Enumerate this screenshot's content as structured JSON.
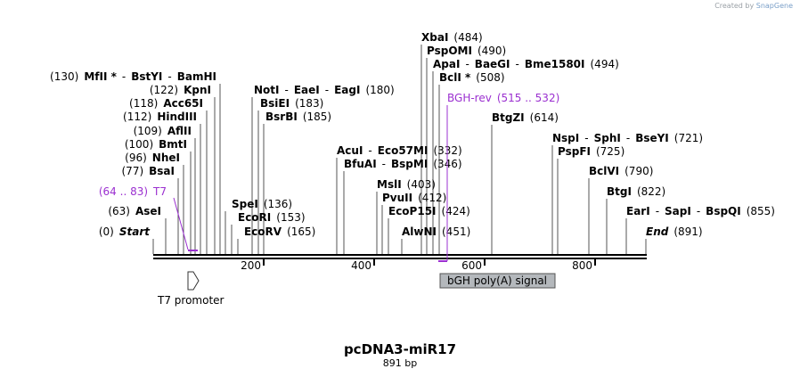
{
  "credit": {
    "prefix": "Created by",
    "brand": "SnapGene"
  },
  "plasmid": {
    "name": "pcDNA3-miR17",
    "length_label": "891 bp"
  },
  "axis": {
    "ticks": [
      "200",
      "400",
      "600",
      "800"
    ]
  },
  "sites": [
    {
      "parts": [
        {
          "t": "(0)"
        },
        {
          "t": "Start",
          "b": true,
          "i": true
        }
      ]
    },
    {
      "parts": [
        {
          "t": "(63)"
        },
        {
          "t": "AseI",
          "b": true
        }
      ]
    },
    {
      "parts": [
        {
          "t": "(77)"
        },
        {
          "t": "BsaI",
          "b": true
        }
      ]
    },
    {
      "parts": [
        {
          "t": "(96)"
        },
        {
          "t": "NheI",
          "b": true
        }
      ]
    },
    {
      "parts": [
        {
          "t": "(100)"
        },
        {
          "t": "BmtI",
          "b": true
        }
      ]
    },
    {
      "parts": [
        {
          "t": "(109)"
        },
        {
          "t": "AflII",
          "b": true
        }
      ]
    },
    {
      "parts": [
        {
          "t": "(112)"
        },
        {
          "t": "HindIII",
          "b": true
        }
      ]
    },
    {
      "parts": [
        {
          "t": "(118)"
        },
        {
          "t": "Acc65I",
          "b": true
        }
      ]
    },
    {
      "parts": [
        {
          "t": "(122)"
        },
        {
          "t": "KpnI",
          "b": true
        }
      ]
    },
    {
      "parts": [
        {
          "t": "(130)"
        },
        {
          "t": "MfII *",
          "b": true
        },
        {
          "t": "-"
        },
        {
          "t": "BstYI",
          "b": true
        },
        {
          "t": "-"
        },
        {
          "t": "BamHI",
          "b": true
        }
      ]
    },
    {
      "parts": [
        {
          "t": "NotI",
          "b": true
        },
        {
          "t": "-"
        },
        {
          "t": "EaeI",
          "b": true
        },
        {
          "t": "-"
        },
        {
          "t": "EagI",
          "b": true
        },
        {
          "t": "(180)"
        }
      ]
    },
    {
      "parts": [
        {
          "t": "BsiEI",
          "b": true
        },
        {
          "t": "(183)"
        }
      ]
    },
    {
      "parts": [
        {
          "t": "BsrBI",
          "b": true
        },
        {
          "t": "(185)"
        }
      ]
    },
    {
      "parts": [
        {
          "t": "SpeI",
          "b": true
        },
        {
          "t": "(136)"
        }
      ]
    },
    {
      "parts": [
        {
          "t": "EcoRI",
          "b": true
        },
        {
          "t": "(153)"
        }
      ]
    },
    {
      "parts": [
        {
          "t": "EcoRV",
          "b": true
        },
        {
          "t": "(165)"
        }
      ]
    },
    {
      "parts": [
        {
          "t": "AcuI",
          "b": true
        },
        {
          "t": "-"
        },
        {
          "t": "Eco57MI",
          "b": true
        },
        {
          "t": "(332)"
        }
      ]
    },
    {
      "parts": [
        {
          "t": "BfuAI",
          "b": true
        },
        {
          "t": "-"
        },
        {
          "t": "BspMI",
          "b": true
        },
        {
          "t": "(346)"
        }
      ]
    },
    {
      "parts": [
        {
          "t": "MslI",
          "b": true
        },
        {
          "t": "(403)"
        }
      ]
    },
    {
      "parts": [
        {
          "t": "PvuII",
          "b": true
        },
        {
          "t": "(412)"
        }
      ]
    },
    {
      "parts": [
        {
          "t": "EcoP15I",
          "b": true
        },
        {
          "t": "(424)"
        }
      ]
    },
    {
      "parts": [
        {
          "t": "AlwNI",
          "b": true
        },
        {
          "t": "(451)"
        }
      ]
    },
    {
      "parts": [
        {
          "t": "XbaI",
          "b": true
        },
        {
          "t": "(484)"
        }
      ]
    },
    {
      "parts": [
        {
          "t": "PspOMI",
          "b": true
        },
        {
          "t": "(490)"
        }
      ]
    },
    {
      "parts": [
        {
          "t": "ApaI",
          "b": true
        },
        {
          "t": "-"
        },
        {
          "t": "BaeGI",
          "b": true
        },
        {
          "t": "-"
        },
        {
          "t": "Bme1580I",
          "b": true
        },
        {
          "t": "(494)"
        }
      ]
    },
    {
      "parts": [
        {
          "t": "BclI *",
          "b": true
        },
        {
          "t": "(508)"
        }
      ]
    },
    {
      "parts": [
        {
          "t": "BtgZI",
          "b": true
        },
        {
          "t": "(614)"
        }
      ]
    },
    {
      "parts": [
        {
          "t": "NspI",
          "b": true
        },
        {
          "t": "-"
        },
        {
          "t": "SphI",
          "b": true
        },
        {
          "t": "-"
        },
        {
          "t": "BseYI",
          "b": true
        },
        {
          "t": "(721)"
        }
      ]
    },
    {
      "parts": [
        {
          "t": "PspFI",
          "b": true
        },
        {
          "t": "(725)"
        }
      ]
    },
    {
      "parts": [
        {
          "t": "BclVI",
          "b": true
        },
        {
          "t": "(790)"
        }
      ]
    },
    {
      "parts": [
        {
          "t": "BtgI",
          "b": true
        },
        {
          "t": "(822)"
        }
      ]
    },
    {
      "parts": [
        {
          "t": "EarI",
          "b": true
        },
        {
          "t": "-"
        },
        {
          "t": "SapI",
          "b": true
        },
        {
          "t": "-"
        },
        {
          "t": "BspQI",
          "b": true
        },
        {
          "t": "(855)"
        }
      ]
    },
    {
      "parts": [
        {
          "t": "End",
          "b": true,
          "i": true
        },
        {
          "t": "(891)"
        }
      ]
    }
  ],
  "primers": [
    {
      "parts": [
        {
          "t": "(64 .. 83)"
        },
        {
          "t": "T7"
        }
      ]
    },
    {
      "parts": [
        {
          "t": "BGH-rev"
        },
        {
          "t": "(515 .. 532)"
        }
      ]
    }
  ],
  "features": {
    "t7_promoter": "T7 promoter",
    "bgh_polya": "bGH poly(A) signal"
  },
  "colors": {
    "primer": "#9b30d0",
    "feature_box": "#b4b8bc",
    "text": "#000000",
    "credit": "#9aa0a6"
  }
}
